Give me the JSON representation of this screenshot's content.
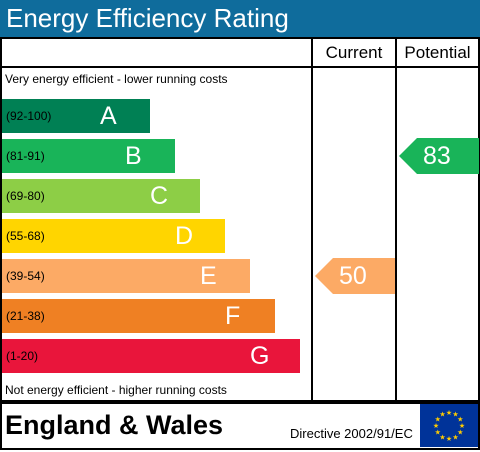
{
  "title": "Energy Efficiency Rating",
  "columns": {
    "current": "Current",
    "potential": "Potential"
  },
  "notes": {
    "top": "Very energy efficient - lower running costs",
    "bottom": "Not energy efficient - higher running costs"
  },
  "footer": {
    "country": "England & Wales",
    "directive": "Directive 2002/91/EC"
  },
  "eu_flag_icon": "eu-flag-icon",
  "chart_data": {
    "type": "bar",
    "categories": [
      "A",
      "B",
      "C",
      "D",
      "E",
      "F",
      "G"
    ],
    "bands": [
      {
        "letter": "A",
        "range": "(92-100)",
        "color": "#008054"
      },
      {
        "letter": "B",
        "range": "(81-91)",
        "color": "#19b459"
      },
      {
        "letter": "C",
        "range": "(69-80)",
        "color": "#8dce46"
      },
      {
        "letter": "D",
        "range": "(55-68)",
        "color": "#ffd500"
      },
      {
        "letter": "E",
        "range": "(39-54)",
        "color": "#fcaa65"
      },
      {
        "letter": "F",
        "range": "(21-38)",
        "color": "#ef8023"
      },
      {
        "letter": "G",
        "range": "(1-20)",
        "color": "#e9153b"
      }
    ],
    "current": {
      "value": "50",
      "band": "E"
    },
    "potential": {
      "value": "83",
      "band": "B"
    }
  }
}
